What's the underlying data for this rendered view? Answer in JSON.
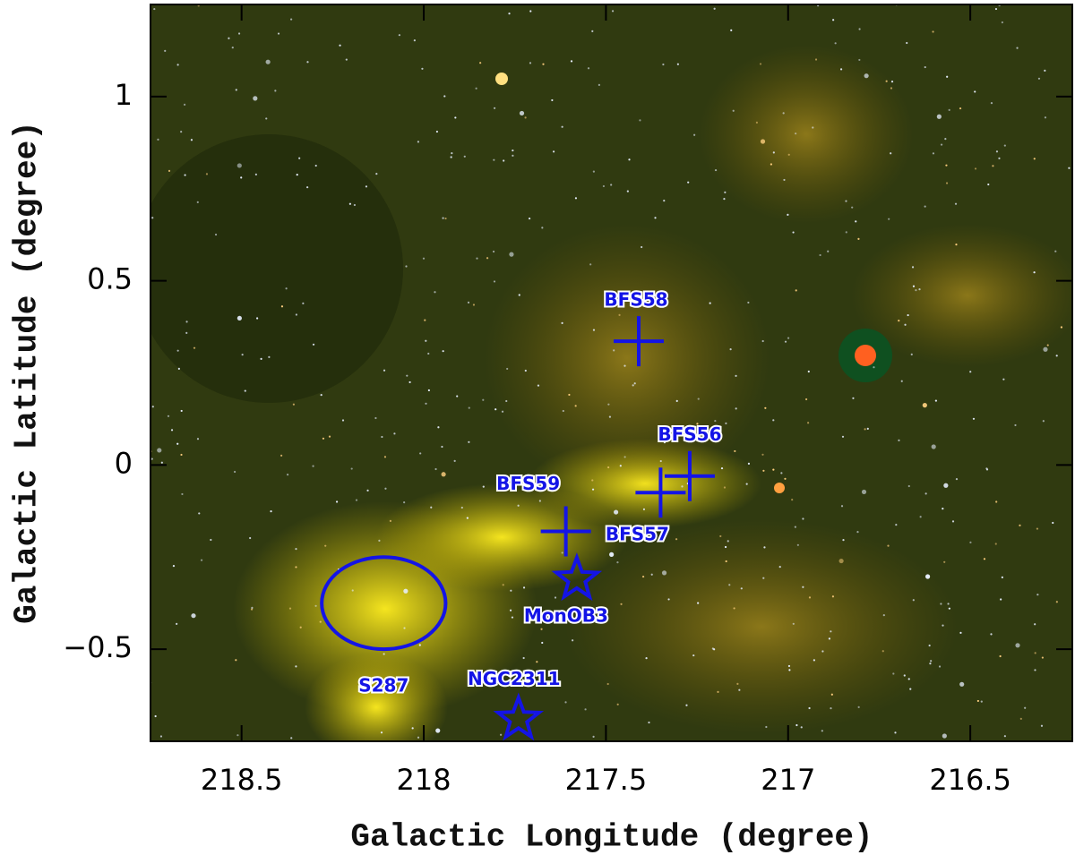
{
  "chart_data": {
    "type": "scatter",
    "xlabel": "Galactic Longitude (degree)",
    "ylabel": "Galactic Latitude (degree)",
    "xlim": [
      218.75,
      216.22
    ],
    "ylim": [
      -0.75,
      1.25
    ],
    "xticks": [
      218.5,
      218,
      217.5,
      217,
      216.5
    ],
    "yticks": [
      {
        "value": -0.5,
        "label": "−0.5"
      },
      0,
      0.5,
      1
    ],
    "color": "#1414e6",
    "points": [
      {
        "label": "BFS58",
        "x": 217.41,
        "y": 0.336,
        "marker": "cross"
      },
      {
        "label": "BFS56",
        "x": 217.27,
        "y": -0.03,
        "marker": "cross"
      },
      {
        "label": "BFS57",
        "x": 217.35,
        "y": -0.075,
        "marker": "cross"
      },
      {
        "label": "BFS59",
        "x": 217.61,
        "y": -0.18,
        "marker": "cross"
      },
      {
        "label": "MonOB3",
        "x": 217.58,
        "y": -0.31,
        "marker": "star"
      },
      {
        "label": "NGC2311",
        "x": 217.74,
        "y": -0.69,
        "marker": "star"
      }
    ],
    "ellipses": [
      {
        "label": "S287",
        "x": 218.11,
        "y": -0.375,
        "width": 0.34,
        "height": 0.25
      }
    ]
  }
}
